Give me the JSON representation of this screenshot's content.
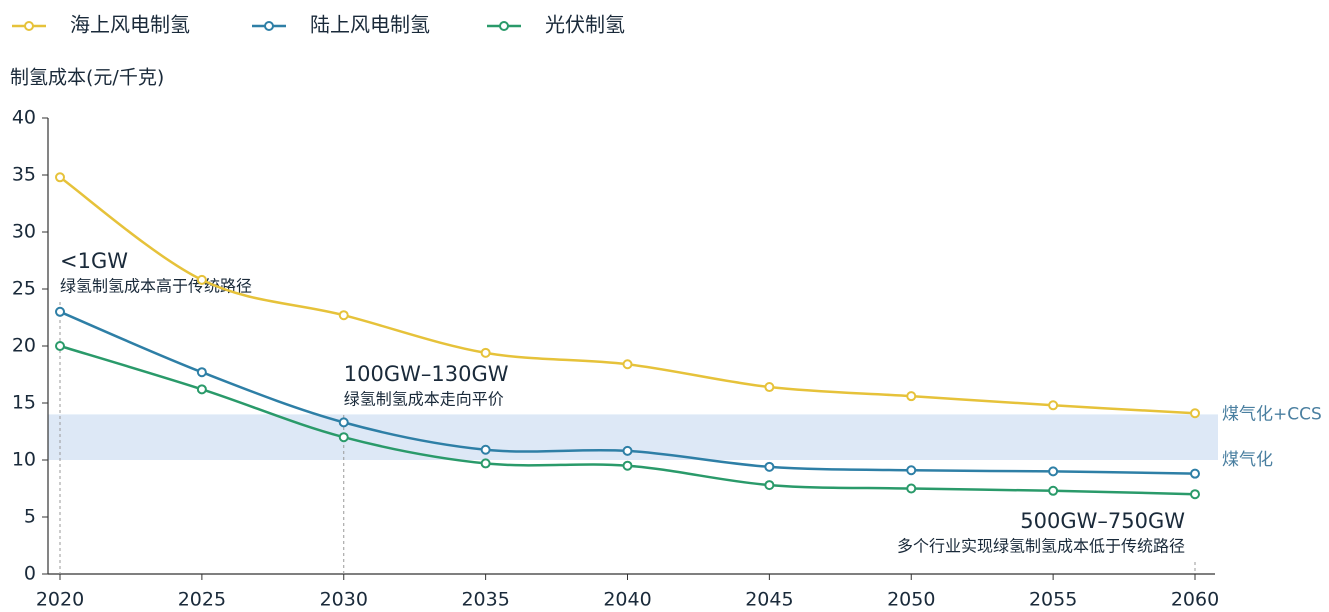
{
  "chart_data": {
    "type": "line",
    "y_label": "制氢成本(元/千克)",
    "x": [
      2020,
      2025,
      2030,
      2035,
      2040,
      2045,
      2050,
      2055,
      2060
    ],
    "series": [
      {
        "name": "海上风电制氢",
        "color": "#e6c23a",
        "values": [
          34.8,
          25.8,
          22.7,
          19.4,
          18.4,
          16.4,
          15.6,
          14.8,
          14.1
        ]
      },
      {
        "name": "陆上风电制氢",
        "color": "#2e7fa6",
        "values": [
          23.0,
          17.7,
          13.3,
          10.9,
          10.8,
          9.4,
          9.1,
          9.0,
          8.8
        ]
      },
      {
        "name": "光伏制氢",
        "color": "#2a9a6a",
        "values": [
          20.0,
          16.2,
          12.0,
          9.7,
          9.5,
          7.8,
          7.5,
          7.3,
          7.0
        ]
      }
    ],
    "xlim": [
      2020,
      2060
    ],
    "xticks": [
      2020,
      2025,
      2030,
      2035,
      2040,
      2045,
      2050,
      2055,
      2060
    ],
    "ylim": [
      0,
      40
    ],
    "yticks": [
      0,
      5,
      10,
      15,
      20,
      25,
      30,
      35,
      40
    ],
    "reference_band": {
      "ymin": 10,
      "ymax": 14,
      "color": "#dde8f6",
      "label_min": "煤气化",
      "label_max": "煤气化+CCS"
    },
    "annotations": [
      {
        "x": 2020,
        "label": "<1GW",
        "text": "绿氢制氢成本高于传统路径"
      },
      {
        "x": 2030,
        "label": "100GW–130GW",
        "text": "绿氢制氢成本走向平价"
      },
      {
        "x": 2060,
        "label": "500GW–750GW",
        "text": "多个行业实现绿氢制氢成本低于传统路径"
      }
    ]
  }
}
